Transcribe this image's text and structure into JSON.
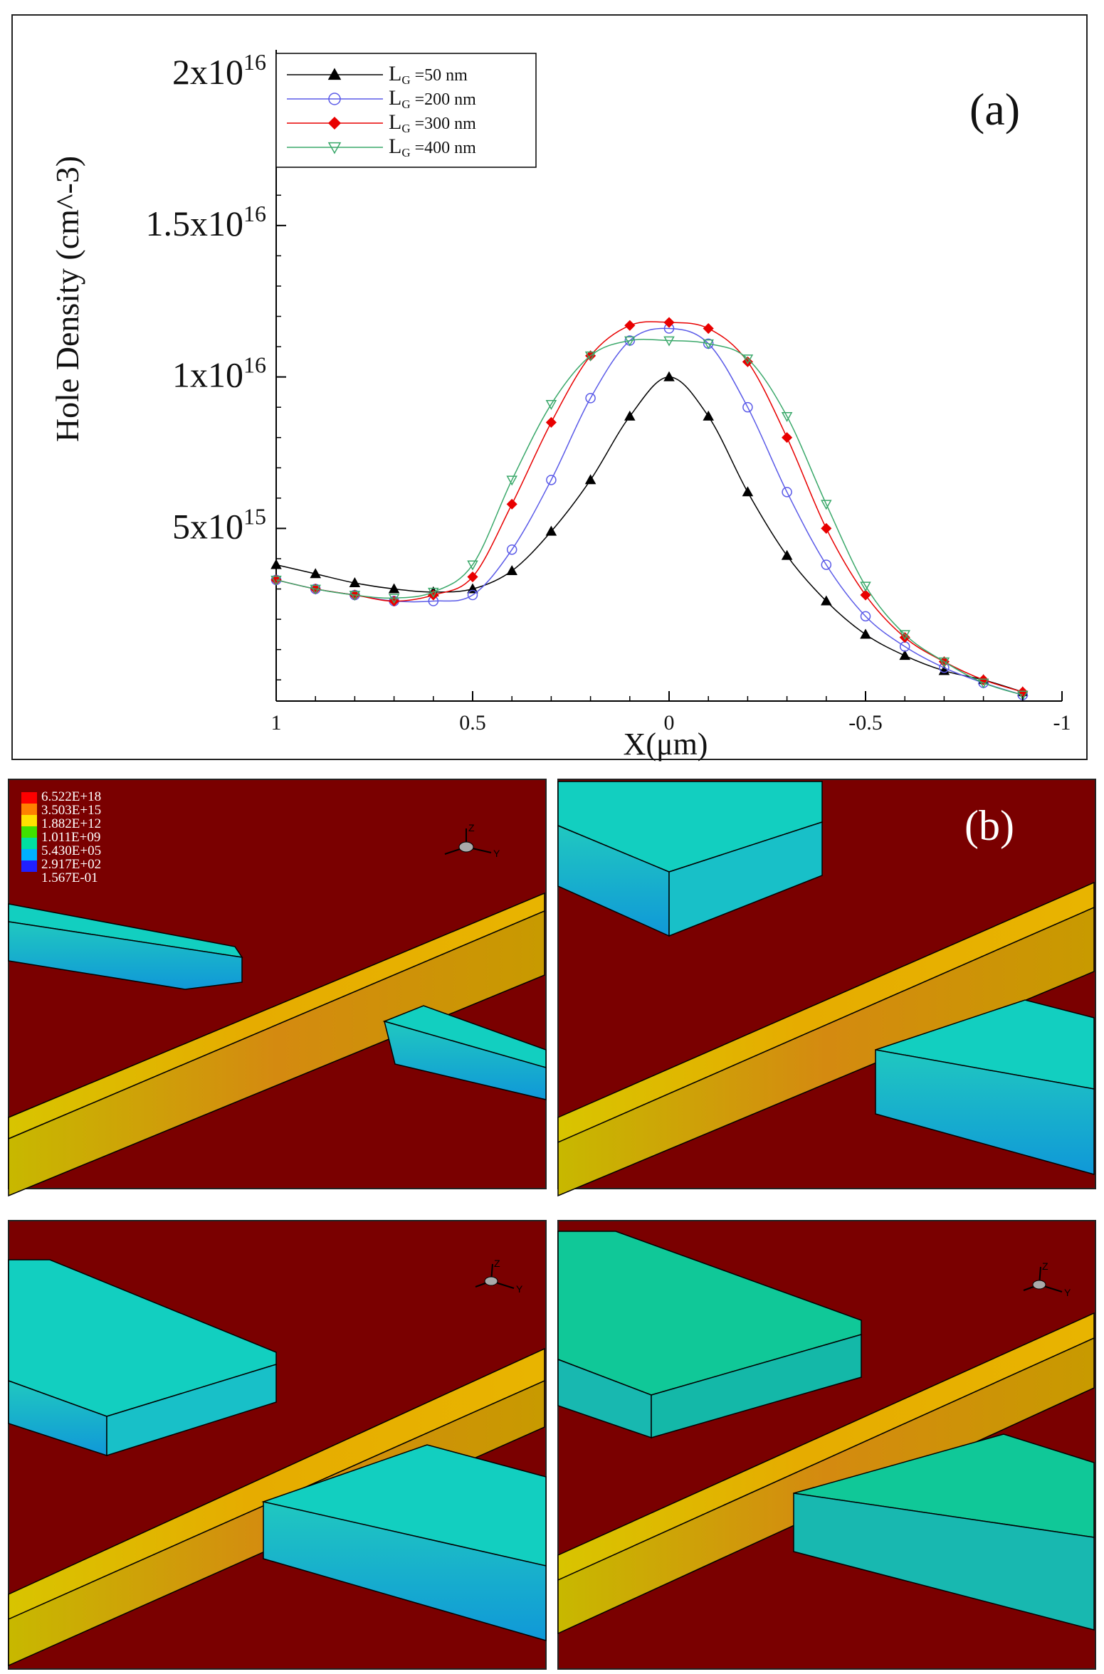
{
  "panel_a": {
    "label": "(a)",
    "ylabel": "Hole Density (cm^-3)",
    "xlabel": "X(μm)",
    "y_ticks": [
      {
        "value": 20000000000000000,
        "base": "2x10",
        "exp": "16"
      },
      {
        "value": 15000000000000000,
        "base": "1.5x10",
        "exp": "16"
      },
      {
        "value": 10000000000000000,
        "base": "1x10",
        "exp": "16"
      },
      {
        "value": 5000000000000000,
        "base": "5x10",
        "exp": "15"
      }
    ],
    "x_ticks": [
      {
        "value": 1,
        "label": "1"
      },
      {
        "value": 0.5,
        "label": "0.5"
      },
      {
        "value": 0,
        "label": "0"
      },
      {
        "value": -0.5,
        "label": "-0.5"
      },
      {
        "value": -1,
        "label": "-1"
      }
    ]
  },
  "chart_data": {
    "type": "line",
    "xlabel": "X(μm)",
    "ylabel": "Hole Density (cm^-3)",
    "xlim": [
      1,
      -1
    ],
    "ylim": [
      -700000000000000,
      20800000000000000
    ],
    "x_reversed": true,
    "grid": false,
    "legend_position": "top-left",
    "x": [
      1.0,
      0.9,
      0.8,
      0.7,
      0.6,
      0.5,
      0.4,
      0.3,
      0.2,
      0.1,
      0.0,
      -0.1,
      -0.2,
      -0.3,
      -0.4,
      -0.5,
      -0.6,
      -0.7,
      -0.8,
      -0.9
    ],
    "series": [
      {
        "name": "LG =50 nm",
        "legend_main": "L",
        "legend_sub": "G",
        "legend_rest": " =50 nm",
        "color": "#000000",
        "marker": "triangle-up",
        "filled": true,
        "values": [
          3800000000000000,
          3500000000000000,
          3200000000000000,
          3000000000000000,
          2900000000000000,
          3000000000000000,
          3600000000000000,
          4900000000000000,
          6600000000000000,
          8700000000000000,
          10000000000000000,
          8700000000000000,
          6200000000000000,
          4100000000000000,
          2600000000000000,
          1500000000000000,
          800000000000000,
          300000000000000,
          0,
          -400000000000000
        ]
      },
      {
        "name": "LG =200 nm",
        "legend_main": "L",
        "legend_sub": "G",
        "legend_rest": " =200 nm",
        "color": "#5a5ae8",
        "marker": "circle",
        "filled": false,
        "values": [
          3300000000000000,
          3000000000000000,
          2800000000000000,
          2600000000000000,
          2600000000000000,
          2800000000000000,
          4300000000000000,
          6600000000000000,
          9300000000000000,
          11200000000000000,
          11600000000000000,
          11100000000000000,
          9000000000000000,
          6200000000000000,
          3800000000000000,
          2100000000000000,
          1100000000000000,
          400000000000000,
          -100000000000000,
          -500000000000000
        ]
      },
      {
        "name": "LG =300 nm",
        "legend_main": "L",
        "legend_sub": "G",
        "legend_rest": " =300 nm",
        "color": "#e80000",
        "marker": "diamond",
        "filled": true,
        "values": [
          3300000000000000,
          3000000000000000,
          2800000000000000,
          2600000000000000,
          2800000000000000,
          3400000000000000,
          5800000000000000,
          8500000000000000,
          10700000000000000,
          11700000000000000,
          11800000000000000,
          11600000000000000,
          10500000000000000,
          8000000000000000,
          5000000000000000,
          2800000000000000,
          1400000000000000,
          600000000000000,
          0,
          -400000000000000
        ]
      },
      {
        "name": "LG =400 nm",
        "legend_main": "L",
        "legend_sub": "G",
        "legend_rest": " =400 nm",
        "color": "#3aa86a",
        "marker": "triangle-down",
        "filled": false,
        "values": [
          3300000000000000,
          3000000000000000,
          2800000000000000,
          2700000000000000,
          2900000000000000,
          3800000000000000,
          6600000000000000,
          9100000000000000,
          10700000000000000,
          11200000000000000,
          11200000000000000,
          11100000000000000,
          10600000000000000,
          8700000000000000,
          5800000000000000,
          3100000000000000,
          1500000000000000,
          600000000000000,
          -100000000000000,
          -500000000000000
        ]
      }
    ]
  },
  "panel_b": {
    "label": "(b)",
    "legend_levels": [
      "6.522E+18",
      "3.503E+15",
      "1.882E+12",
      "1.011E+09",
      "5.430E+05",
      "2.917E+02",
      "1.567E-01"
    ],
    "colors": {
      "background": "#7a0000",
      "wire_top": "#e8b000",
      "wire_side": "#c89a00",
      "contact_top": "#00d0c0",
      "contact_side": "#10b8c8",
      "contact_top_alt": "#00c898"
    },
    "axis_icon_letters": {
      "z": "Z",
      "y": "Y"
    }
  }
}
